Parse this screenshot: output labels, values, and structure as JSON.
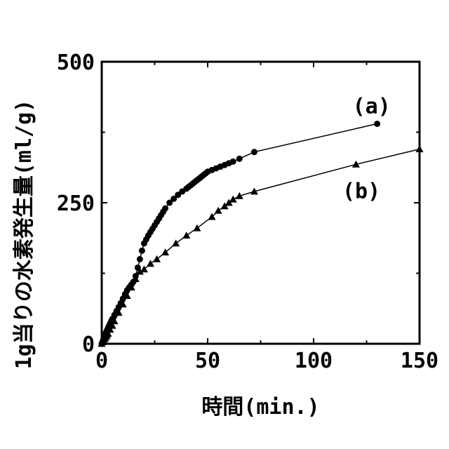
{
  "chart_data": {
    "type": "line",
    "xlabel": "時間(min.)",
    "ylabel": "1g当りの水素発生量(ml/g)",
    "xlim": [
      0,
      150
    ],
    "ylim": [
      0,
      500
    ],
    "xticks": [
      0,
      50,
      100,
      150
    ],
    "yticks": [
      0,
      250,
      500
    ],
    "x_tick_labels": [
      "0",
      "50",
      "100",
      "150"
    ],
    "y_tick_labels": [
      "0",
      "250",
      "500"
    ],
    "grid": false,
    "legend": "none",
    "series": [
      {
        "name": "(a)",
        "marker": "circle",
        "x": [
          0,
          0.5,
          1,
          1.5,
          2,
          2.5,
          3,
          3.5,
          4,
          4.5,
          5,
          6,
          7,
          8,
          9,
          10,
          11,
          12,
          13,
          14,
          15,
          16,
          17,
          18,
          19,
          20,
          21,
          22,
          23,
          24,
          25,
          26,
          27,
          28,
          29,
          30,
          32,
          34,
          36,
          38,
          40,
          41,
          42,
          43,
          44,
          45,
          46,
          47,
          48,
          49,
          50,
          52,
          54,
          56,
          58,
          60,
          62,
          65,
          72,
          130
        ],
        "values": [
          0,
          5,
          10,
          15,
          20,
          24,
          28,
          32,
          36,
          40,
          44,
          51,
          58,
          65,
          72,
          80,
          88,
          95,
          100,
          105,
          110,
          120,
          135,
          150,
          165,
          178,
          185,
          192,
          198,
          204,
          210,
          216,
          222,
          228,
          234,
          240,
          250,
          257,
          264,
          270,
          275,
          278,
          281,
          284,
          287,
          290,
          293,
          296,
          299,
          302,
          305,
          308,
          311,
          314,
          317,
          320,
          323,
          328,
          340,
          390
        ]
      },
      {
        "name": "(b)",
        "marker": "triangle",
        "x": [
          0,
          0.5,
          1,
          1.5,
          2,
          2.5,
          3,
          4,
          5,
          6,
          8,
          10,
          12,
          14,
          16,
          18,
          20,
          23,
          26,
          30,
          35,
          40,
          45,
          52,
          55,
          58,
          60,
          62,
          65,
          72,
          120,
          150
        ],
        "values": [
          0,
          3,
          6,
          9,
          12,
          15,
          18,
          25,
          32,
          40,
          55,
          70,
          85,
          100,
          115,
          128,
          132,
          142,
          150,
          162,
          178,
          192,
          205,
          225,
          236,
          244,
          250,
          256,
          262,
          270,
          318,
          345
        ]
      }
    ]
  }
}
